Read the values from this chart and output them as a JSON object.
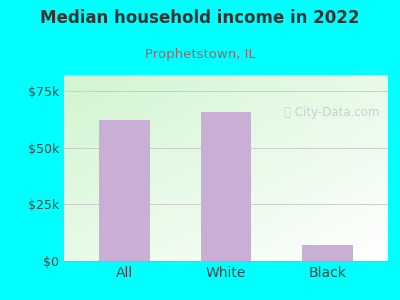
{
  "title": "Median household income in 2022",
  "subtitle": "Prophetstown, IL",
  "categories": [
    "All",
    "White",
    "Black"
  ],
  "values": [
    62000,
    65500,
    7000
  ],
  "bar_color": "#c9aed6",
  "bg_color": "#00FFFF",
  "title_color": "#333333",
  "subtitle_color": "#a06060",
  "tick_color": "#444444",
  "yticks": [
    0,
    25000,
    50000,
    75000
  ],
  "ytick_labels": [
    "$0",
    "$25k",
    "$50k",
    "$75k"
  ],
  "ylim": [
    0,
    82000
  ],
  "watermark": "City-Data.com",
  "watermark_color": "#c0c8cc",
  "grid_color": "#cccccc",
  "chart_area_left_color": "#cceedd",
  "chart_area_right_color": "#eefff5"
}
